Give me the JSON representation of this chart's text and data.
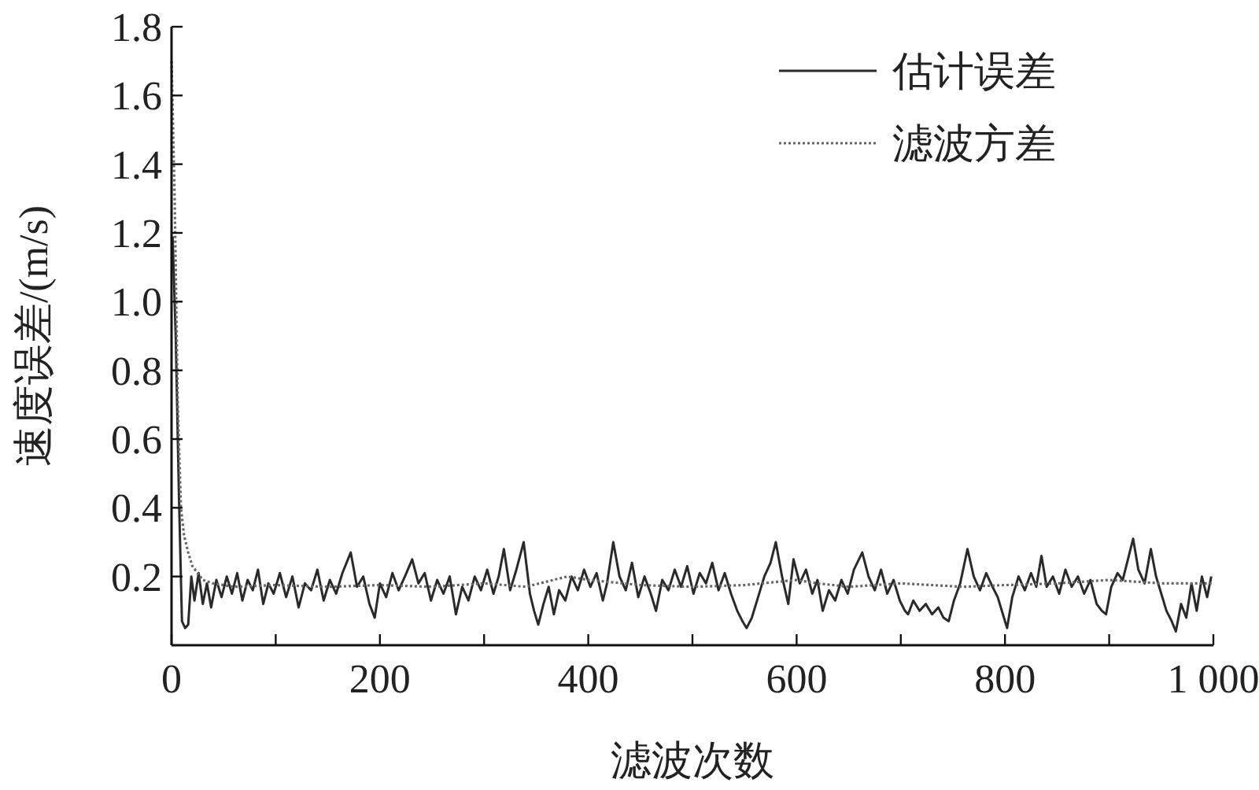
{
  "chart_data": {
    "type": "line",
    "xlabel": "滤波次数",
    "ylabel": "速度误差/(m/s)",
    "xlim": [
      0,
      1000
    ],
    "ylim": [
      0,
      1.8
    ],
    "xticks": [
      0,
      {
        "value": 100,
        "label": null
      },
      200,
      {
        "value": 300,
        "label": null
      },
      400,
      {
        "value": 500,
        "label": null
      },
      600,
      {
        "value": 700,
        "label": null
      },
      800,
      {
        "value": 900,
        "label": null
      },
      {
        "value": 1000,
        "label": "1 000"
      }
    ],
    "yticks": [
      0.2,
      0.4,
      0.6,
      0.8,
      {
        "value": 1,
        "label": "1.0"
      },
      1.2,
      1.4,
      1.6,
      1.8
    ],
    "legend": "top right",
    "grid": false,
    "series": [
      {
        "name": "估计误差",
        "color": "#2a2a2a",
        "line_style": "solid",
        "x": [
          1,
          4,
          7,
          10,
          13,
          16,
          19,
          22,
          26,
          30,
          34,
          38,
          43,
          48,
          53,
          58,
          63,
          68,
          73,
          78,
          83,
          88,
          93,
          98,
          104,
          110,
          116,
          122,
          128,
          134,
          140,
          146,
          152,
          158,
          164,
          172,
          178,
          184,
          190,
          195,
          200,
          206,
          212,
          218,
          224,
          231,
          237,
          243,
          249,
          255,
          261,
          267,
          273,
          279,
          285,
          291,
          297,
          303,
          309,
          314,
          319,
          325,
          331,
          338,
          344,
          348,
          352,
          357,
          362,
          367,
          372,
          378,
          384,
          390,
          396,
          402,
          408,
          414,
          418,
          424,
          430,
          436,
          442,
          448,
          454,
          460,
          465,
          471,
          477,
          483,
          489,
          495,
          501,
          507,
          513,
          519,
          525,
          531,
          537,
          543,
          548,
          552,
          557,
          563,
          569,
          575,
          580,
          586,
          592,
          597,
          603,
          609,
          615,
          620,
          625,
          631,
          637,
          643,
          649,
          655,
          663,
          669,
          675,
          681,
          687,
          693,
          699,
          704,
          707,
          712,
          718,
          724,
          730,
          736,
          741,
          746,
          751,
          757,
          764,
          770,
          776,
          782,
          788,
          793,
          798,
          802,
          807,
          813,
          819,
          825,
          830,
          835,
          840,
          846,
          852,
          858,
          864,
          870,
          876,
          882,
          888,
          893,
          897,
          902,
          908,
          913,
          918,
          923,
          928,
          934,
          940,
          945,
          950,
          955,
          960,
          964,
          969,
          974,
          979,
          984,
          989,
          994,
          998
        ],
        "values": [
          1.19,
          0.9,
          0.45,
          0.07,
          0.05,
          0.06,
          0.2,
          0.13,
          0.21,
          0.12,
          0.18,
          0.11,
          0.19,
          0.14,
          0.2,
          0.15,
          0.21,
          0.13,
          0.19,
          0.16,
          0.22,
          0.12,
          0.18,
          0.15,
          0.21,
          0.14,
          0.2,
          0.11,
          0.18,
          0.16,
          0.22,
          0.13,
          0.19,
          0.15,
          0.21,
          0.27,
          0.17,
          0.2,
          0.12,
          0.08,
          0.18,
          0.14,
          0.21,
          0.16,
          0.2,
          0.25,
          0.18,
          0.21,
          0.13,
          0.19,
          0.15,
          0.2,
          0.09,
          0.17,
          0.13,
          0.2,
          0.16,
          0.22,
          0.15,
          0.2,
          0.28,
          0.16,
          0.22,
          0.3,
          0.15,
          0.1,
          0.06,
          0.12,
          0.17,
          0.09,
          0.16,
          0.13,
          0.2,
          0.16,
          0.22,
          0.17,
          0.21,
          0.13,
          0.18,
          0.3,
          0.2,
          0.16,
          0.24,
          0.14,
          0.2,
          0.15,
          0.1,
          0.19,
          0.16,
          0.22,
          0.17,
          0.23,
          0.15,
          0.21,
          0.18,
          0.24,
          0.16,
          0.21,
          0.15,
          0.1,
          0.07,
          0.05,
          0.08,
          0.14,
          0.2,
          0.24,
          0.3,
          0.2,
          0.12,
          0.25,
          0.18,
          0.22,
          0.15,
          0.19,
          0.1,
          0.16,
          0.13,
          0.19,
          0.15,
          0.22,
          0.27,
          0.2,
          0.16,
          0.22,
          0.15,
          0.19,
          0.13,
          0.1,
          0.09,
          0.13,
          0.1,
          0.12,
          0.09,
          0.11,
          0.08,
          0.07,
          0.13,
          0.18,
          0.28,
          0.2,
          0.16,
          0.21,
          0.17,
          0.14,
          0.09,
          0.05,
          0.14,
          0.2,
          0.16,
          0.21,
          0.17,
          0.26,
          0.17,
          0.2,
          0.15,
          0.22,
          0.17,
          0.2,
          0.15,
          0.19,
          0.12,
          0.1,
          0.09,
          0.17,
          0.21,
          0.19,
          0.25,
          0.31,
          0.22,
          0.18,
          0.28,
          0.2,
          0.15,
          0.1,
          0.07,
          0.04,
          0.12,
          0.08,
          0.18,
          0.1,
          0.2,
          0.14,
          0.2
        ]
      },
      {
        "name": "滤波方差",
        "color": "#666666",
        "line_style": "dotted",
        "x": [
          0,
          3,
          6,
          9,
          12,
          16,
          20,
          25,
          30,
          40,
          60,
          100,
          150,
          200,
          250,
          300,
          340,
          380,
          400,
          450,
          500,
          550,
          600,
          620,
          650,
          700,
          760,
          800,
          850,
          900,
          950,
          1000
        ],
        "values": [
          1.7,
          1.3,
          0.7,
          0.4,
          0.32,
          0.27,
          0.23,
          0.21,
          0.19,
          0.18,
          0.17,
          0.175,
          0.17,
          0.175,
          0.17,
          0.18,
          0.17,
          0.2,
          0.19,
          0.175,
          0.17,
          0.175,
          0.19,
          0.18,
          0.17,
          0.18,
          0.17,
          0.175,
          0.18,
          0.19,
          0.18,
          0.18
        ]
      }
    ]
  }
}
